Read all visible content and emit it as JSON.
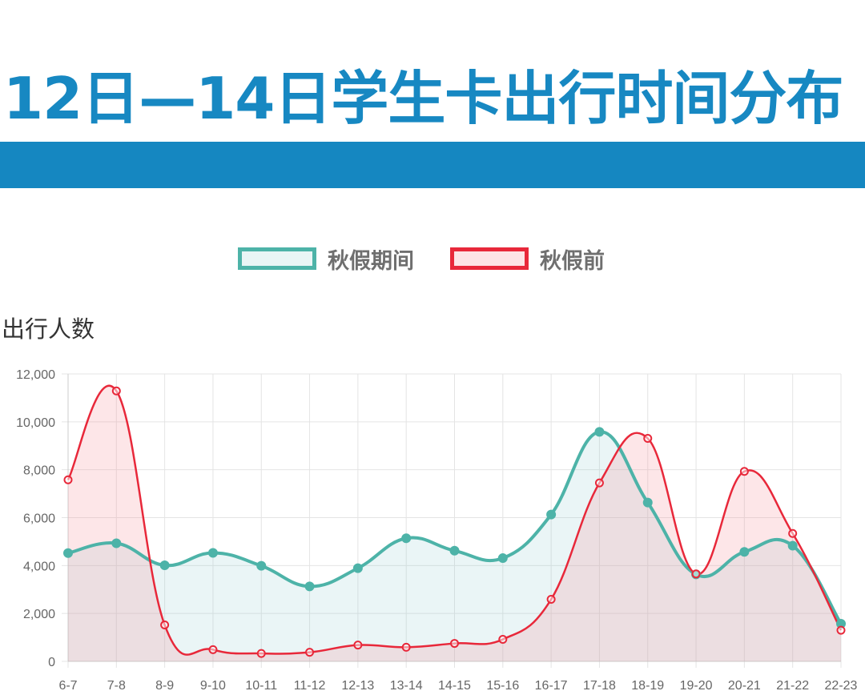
{
  "header": {
    "title": "12日—14日学生卡出行时间分布"
  },
  "colors": {
    "title": "#1788c2",
    "band": "#1587c1",
    "series_during": "#4db3a8",
    "series_before": "#e8283a"
  },
  "chart_data": {
    "type": "line",
    "ylabel": "出行人数",
    "ylim": [
      0,
      12000
    ],
    "yticks": [
      "0",
      "2,000",
      "4,000",
      "6,000",
      "8,000",
      "10,000",
      "12,000"
    ],
    "grid": true,
    "legend_position": "top",
    "categories": [
      "6-7",
      "7-8",
      "8-9",
      "9-10",
      "10-11",
      "11-12",
      "12-13",
      "13-14",
      "14-15",
      "15-16",
      "16-17",
      "17-18",
      "18-19",
      "19-20",
      "20-21",
      "21-22",
      "22-23"
    ],
    "series": [
      {
        "name": "秋假期间",
        "color": "#4db3a8",
        "fill": "rgba(140,200,205,0.18)",
        "values": [
          4520,
          4930,
          4010,
          4530,
          3990,
          3130,
          3890,
          5140,
          4620,
          4310,
          6130,
          9580,
          6630,
          3630,
          4570,
          4830,
          1570
        ]
      },
      {
        "name": "秋假前",
        "color": "#e8283a",
        "fill": "rgba(245,140,150,0.22)",
        "values": [
          7580,
          11290,
          1520,
          490,
          330,
          380,
          680,
          590,
          750,
          920,
          2590,
          7450,
          9310,
          3650,
          7930,
          5340,
          1300
        ]
      }
    ]
  }
}
